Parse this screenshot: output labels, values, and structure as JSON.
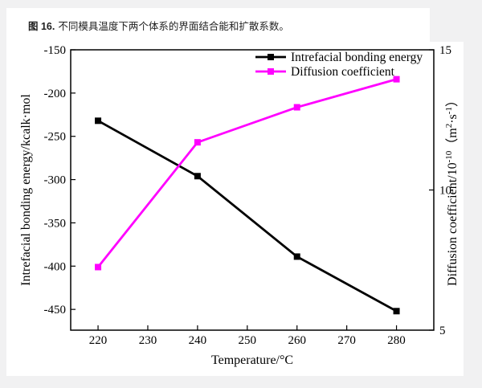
{
  "page": {
    "background_color": "#f1f1f2",
    "card_color": "#ffffff"
  },
  "caption": {
    "label": "图 16.",
    "text": "不同模具温度下两个体系的界面结合能和扩散系数。"
  },
  "chart_data": {
    "type": "line",
    "x": [
      220,
      240,
      260,
      280
    ],
    "series": [
      {
        "name": "Intrefacial bonding energy",
        "axis": "left",
        "color": "#000000",
        "marker": "square",
        "values": [
          -232,
          -296,
          -389,
          -452
        ]
      },
      {
        "name": "Diffusion coefficient",
        "axis": "right",
        "color": "#ff00ff",
        "marker": "square",
        "values": [
          7.25,
          11.7,
          12.95,
          13.95
        ]
      }
    ],
    "xlabel": "Temperature/°C",
    "ylabel_left": "Intrefacial bonding energy/kcalk·mol",
    "ylabel_right_parts": [
      {
        "text": "Diffusion coefficient/10"
      },
      {
        "text": "-10",
        "sup": true
      },
      {
        "text": "（m"
      },
      {
        "text": "2",
        "sup": true
      },
      {
        "text": "·s"
      },
      {
        "text": "-1",
        "sup": true
      },
      {
        "text": "）"
      }
    ],
    "xlim": [
      214.5,
      287.5
    ],
    "x_ticks": [
      220,
      230,
      240,
      250,
      260,
      270,
      280
    ],
    "ylim_left": [
      -474,
      -150
    ],
    "y_ticks_left": [
      -150,
      -200,
      -250,
      -300,
      -350,
      -400,
      -450
    ],
    "ylim_right": [
      5,
      15
    ],
    "y_ticks_right": [
      15,
      10,
      5
    ],
    "grid": false,
    "legend": {
      "position": "top-right",
      "entries": [
        "Intrefacial bonding energy",
        "Diffusion coefficient"
      ]
    }
  }
}
